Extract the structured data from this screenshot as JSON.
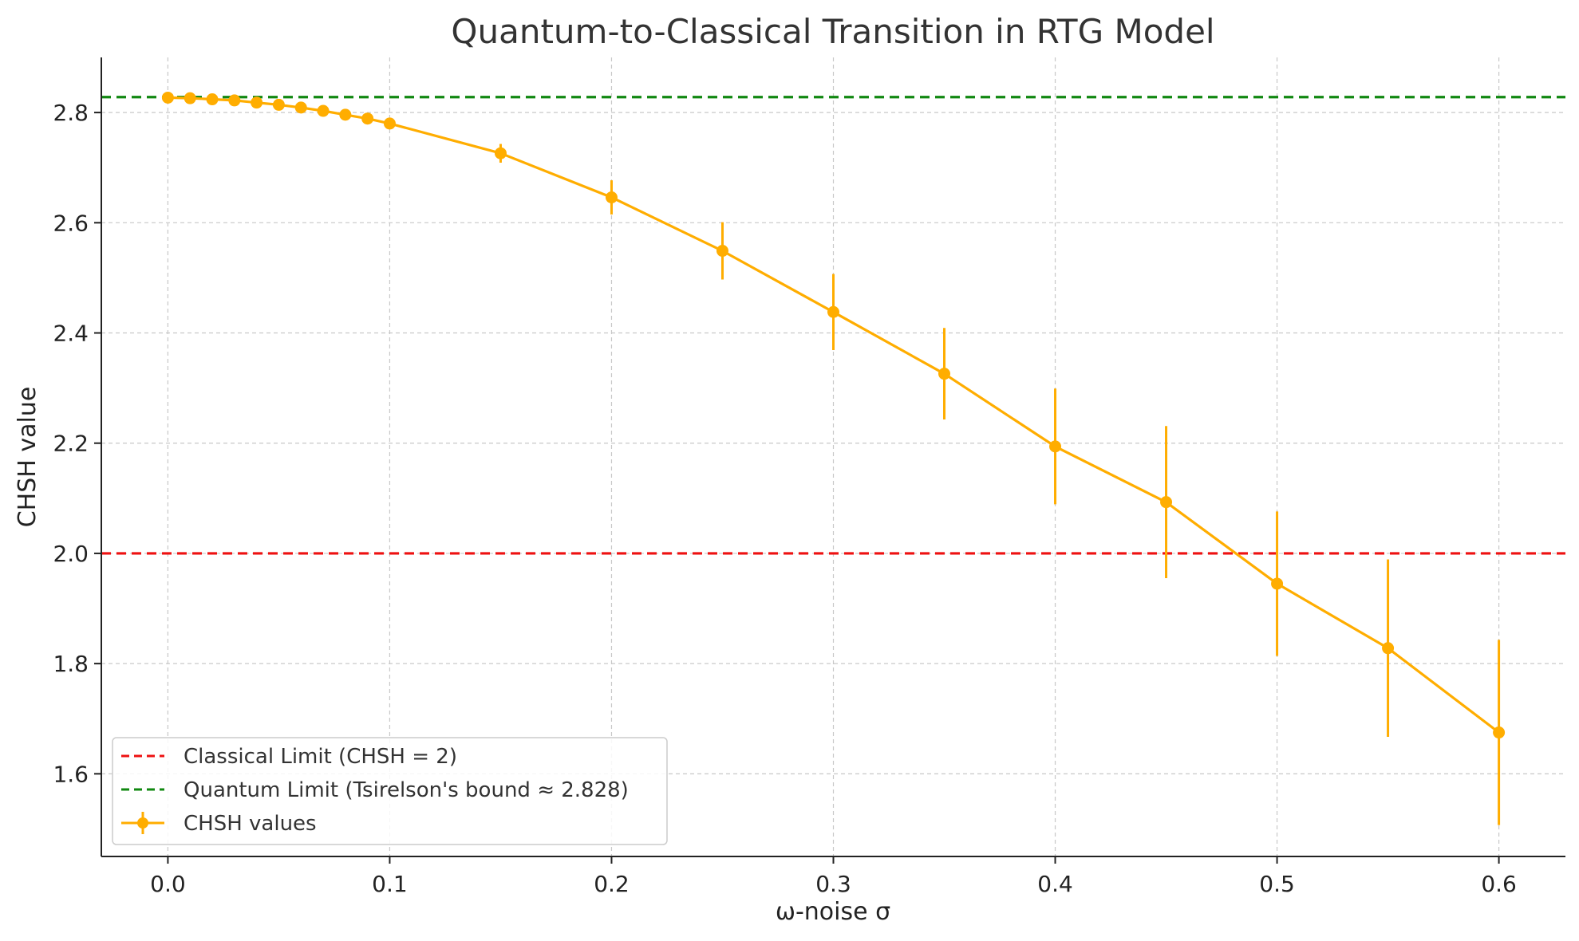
{
  "chart_data": {
    "type": "line",
    "title": "Quantum-to-Classical Transition in RTG Model",
    "xlabel": "ω-noise σ",
    "ylabel": "CHSH value",
    "xlim": [
      -0.03,
      0.63
    ],
    "ylim": [
      1.45,
      2.9
    ],
    "grid": true,
    "legend_position": "bottom-left",
    "x_ticks": [
      0.0,
      0.1,
      0.2,
      0.3,
      0.4,
      0.5,
      0.6
    ],
    "x_tick_labels": [
      "0.0",
      "0.1",
      "0.2",
      "0.3",
      "0.4",
      "0.5",
      "0.6"
    ],
    "y_ticks": [
      1.6,
      1.8,
      2.0,
      2.2,
      2.4,
      2.6,
      2.8
    ],
    "y_tick_labels": [
      "1.6",
      "1.8",
      "2.0",
      "2.2",
      "2.4",
      "2.6",
      "2.8"
    ],
    "reference_lines": [
      {
        "name": "Classical Limit (CHSH = 2)",
        "y": 2.0,
        "color": "#ee1111",
        "style": "dashed"
      },
      {
        "name": "Quantum Limit (Tsirelson's bound ≈ 2.828)",
        "y": 2.828,
        "color": "#118811",
        "style": "dashed"
      }
    ],
    "series": [
      {
        "name": "CHSH values",
        "color": "#ffad00",
        "x": [
          0.0,
          0.01,
          0.02,
          0.03,
          0.04,
          0.05,
          0.06,
          0.07,
          0.08,
          0.09,
          0.1,
          0.15,
          0.2,
          0.25,
          0.3,
          0.35,
          0.4,
          0.45,
          0.5,
          0.55,
          0.6
        ],
        "y": [
          2.827,
          2.826,
          2.824,
          2.822,
          2.818,
          2.814,
          2.809,
          2.803,
          2.796,
          2.789,
          2.78,
          2.726,
          2.646,
          2.549,
          2.438,
          2.326,
          2.194,
          2.093,
          1.945,
          1.828,
          1.675
        ],
        "error": [
          0.0,
          0.0,
          0.0,
          0.0,
          0.0,
          0.0,
          0.0,
          0.0,
          0.0,
          0.0,
          0.0,
          0.017,
          0.031,
          0.052,
          0.069,
          0.083,
          0.105,
          0.138,
          0.131,
          0.161,
          0.168
        ]
      }
    ]
  }
}
